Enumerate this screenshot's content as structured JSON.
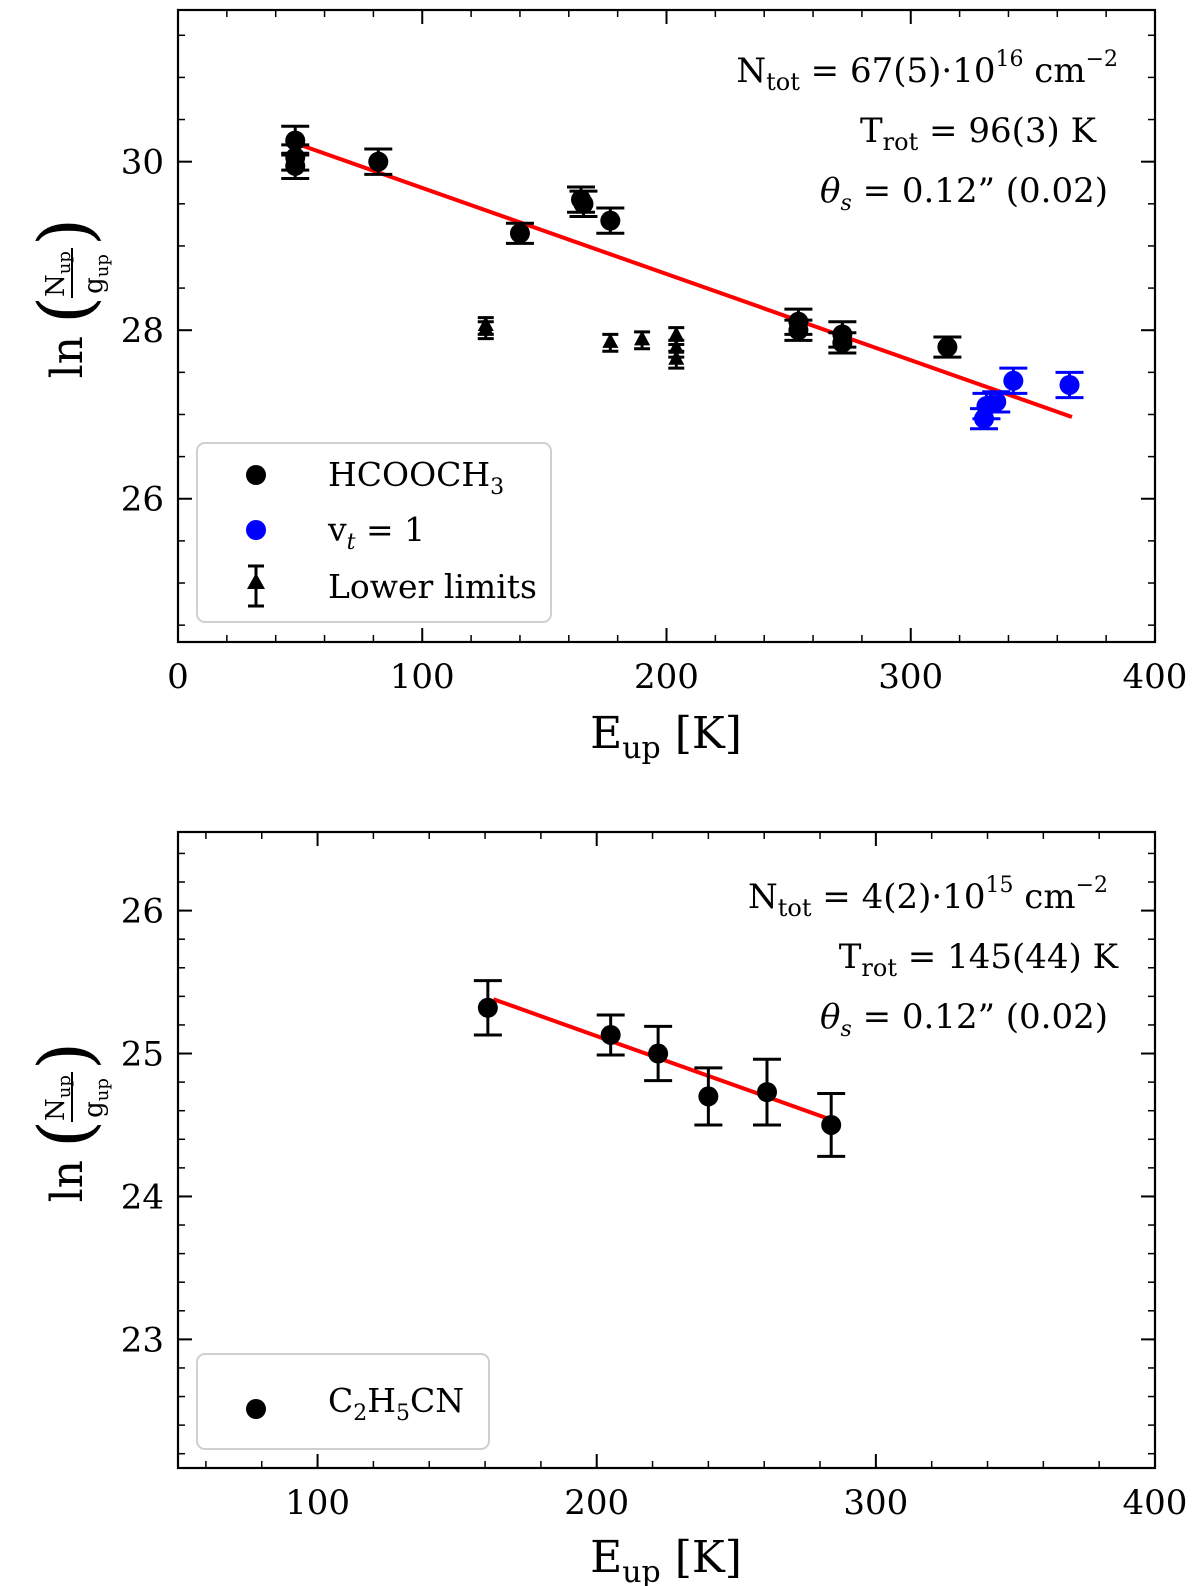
{
  "chart_data": [
    {
      "type": "scatter",
      "xlabel": "E_up [K]",
      "ylabel": "ln(N_up/g_up)",
      "xlim": [
        0,
        400
      ],
      "ylim": [
        24.3,
        31.8
      ],
      "xticks": [
        0,
        100,
        200,
        300,
        400
      ],
      "yticks": [
        26,
        28,
        30
      ],
      "annotations": [
        "N_tot = 67(5)·10^16 cm^-2",
        "T_rot = 96(3) K",
        "θ_s = 0.12\" (0.02)"
      ],
      "legend": {
        "position": "lower-left",
        "entries": [
          "HCOOCH3",
          "v_t = 1",
          "Lower limits"
        ]
      },
      "series": [
        {
          "name": "HCOOCH3",
          "color": "#000000",
          "marker": "circle",
          "points": [
            {
              "x": 48,
              "y": 30.25,
              "err": 0.17
            },
            {
              "x": 48,
              "y": 30.05,
              "err": 0.15
            },
            {
              "x": 48,
              "y": 29.95,
              "err": 0.15
            },
            {
              "x": 82,
              "y": 30.0,
              "err": 0.15
            },
            {
              "x": 140,
              "y": 29.15,
              "err": 0.12
            },
            {
              "x": 165,
              "y": 29.55,
              "err": 0.15
            },
            {
              "x": 166,
              "y": 29.5,
              "err": 0.15
            },
            {
              "x": 177,
              "y": 29.3,
              "err": 0.15
            },
            {
              "x": 254,
              "y": 28.1,
              "err": 0.15
            },
            {
              "x": 254,
              "y": 28.0,
              "err": 0.12
            },
            {
              "x": 272,
              "y": 27.95,
              "err": 0.15
            },
            {
              "x": 272,
              "y": 27.85,
              "err": 0.12
            },
            {
              "x": 315,
              "y": 27.8,
              "err": 0.12
            }
          ]
        },
        {
          "name": "v_t = 1",
          "color": "#0000ff",
          "marker": "circle",
          "points": [
            {
              "x": 330,
              "y": 26.95,
              "err": 0.12
            },
            {
              "x": 331,
              "y": 27.1,
              "err": 0.15
            },
            {
              "x": 335,
              "y": 27.15,
              "err": 0.12
            },
            {
              "x": 342,
              "y": 27.4,
              "err": 0.15
            },
            {
              "x": 365,
              "y": 27.35,
              "err": 0.15
            }
          ]
        },
        {
          "name": "Lower limits",
          "color": "#000000",
          "marker": "triangle",
          "points": [
            {
              "x": 126,
              "y": 28.05,
              "err": 0.1
            },
            {
              "x": 126,
              "y": 28.0,
              "err": 0.1
            },
            {
              "x": 177,
              "y": 27.85,
              "err": 0.1
            },
            {
              "x": 190,
              "y": 27.88,
              "err": 0.1
            },
            {
              "x": 204,
              "y": 27.93,
              "err": 0.1
            },
            {
              "x": 204,
              "y": 27.78,
              "err": 0.1
            },
            {
              "x": 204,
              "y": 27.65,
              "err": 0.1
            }
          ]
        }
      ],
      "fit_line": {
        "color": "#ff0000",
        "x": [
          50,
          366
        ],
        "y": [
          30.2,
          26.97
        ]
      }
    },
    {
      "type": "scatter",
      "xlabel": "E_up [K]",
      "ylabel": "ln(N_up/g_up)",
      "xlim": [
        50,
        400
      ],
      "ylim": [
        22.1,
        26.55
      ],
      "xticks": [
        100,
        200,
        300,
        400
      ],
      "yticks": [
        23,
        24,
        25,
        26
      ],
      "annotations": [
        "N_tot = 4(2)·10^15 cm^-2",
        "T_rot = 145(44) K",
        "θ_s = 0.12\" (0.02)"
      ],
      "legend": {
        "position": "lower-left",
        "entries": [
          "C2H5CN"
        ]
      },
      "series": [
        {
          "name": "C2H5CN",
          "color": "#000000",
          "marker": "circle",
          "points": [
            {
              "x": 161,
              "y": 25.32,
              "err": 0.19
            },
            {
              "x": 205,
              "y": 25.13,
              "err": 0.14
            },
            {
              "x": 222,
              "y": 25.0,
              "err": 0.19
            },
            {
              "x": 240,
              "y": 24.7,
              "err": 0.2
            },
            {
              "x": 261,
              "y": 24.73,
              "err": 0.23
            },
            {
              "x": 284,
              "y": 24.5,
              "err": 0.22
            }
          ]
        }
      ],
      "fit_line": {
        "color": "#ff0000",
        "x": [
          163,
          285
        ],
        "y": [
          25.38,
          24.53
        ]
      }
    }
  ]
}
